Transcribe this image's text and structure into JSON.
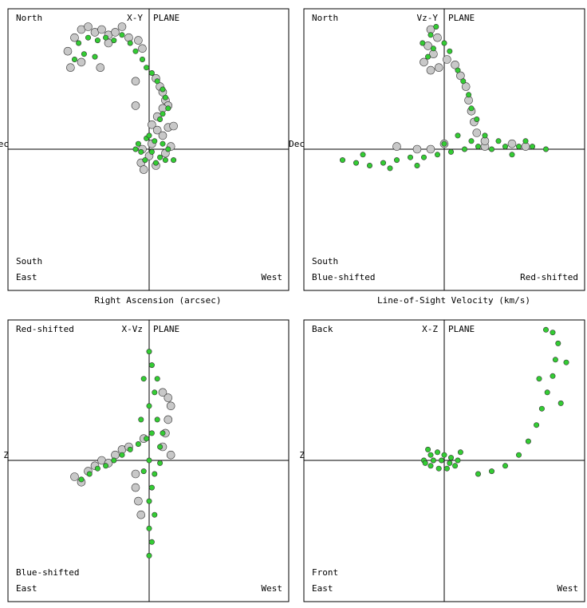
{
  "chart_data": [
    {
      "type": "scatter",
      "plane": "X-Y",
      "plane_label": "PLANE",
      "corners": {
        "top_left": "North",
        "bottom_left_upper": "South",
        "bottom_left": "East",
        "bottom_right": "West"
      },
      "xlabel": "Right Ascension (arcsec)",
      "ylabel": "Dec",
      "xlim": [
        -1,
        1
      ],
      "ylim": [
        -1,
        1
      ],
      "grid": false,
      "series": [
        {
          "color": "#c8c8c8",
          "values": [
            [
              -0.55,
              0.82
            ],
            [
              -0.5,
              0.88
            ],
            [
              -0.45,
              0.9
            ],
            [
              -0.4,
              0.86
            ],
            [
              -0.35,
              0.88
            ],
            [
              -0.3,
              0.84
            ],
            [
              -0.25,
              0.86
            ],
            [
              -0.2,
              0.9
            ],
            [
              -0.15,
              0.82
            ],
            [
              -0.08,
              0.8
            ],
            [
              -0.05,
              0.74
            ],
            [
              -0.6,
              0.72
            ],
            [
              -0.58,
              0.6
            ],
            [
              -0.5,
              0.64
            ],
            [
              -0.36,
              0.6
            ],
            [
              -0.3,
              0.78
            ],
            [
              -0.1,
              0.5
            ],
            [
              0.05,
              0.52
            ],
            [
              0.08,
              0.46
            ],
            [
              0.1,
              0.42
            ],
            [
              0.12,
              0.36
            ],
            [
              0.14,
              0.32
            ],
            [
              0.1,
              0.3
            ],
            [
              0.06,
              0.24
            ],
            [
              0.02,
              0.18
            ],
            [
              0.06,
              0.14
            ],
            [
              0.1,
              0.1
            ],
            [
              0.02,
              0.04
            ],
            [
              -0.05,
              0.0
            ],
            [
              0.0,
              -0.05
            ],
            [
              -0.06,
              -0.1
            ],
            [
              -0.04,
              -0.15
            ],
            [
              0.05,
              -0.12
            ],
            [
              0.12,
              -0.03
            ],
            [
              0.16,
              0.02
            ],
            [
              0.14,
              0.16
            ],
            [
              0.18,
              0.17
            ],
            [
              -0.1,
              0.32
            ]
          ]
        },
        {
          "color": "#33cc33",
          "values": [
            [
              -0.52,
              0.78
            ],
            [
              -0.45,
              0.82
            ],
            [
              -0.38,
              0.8
            ],
            [
              -0.32,
              0.82
            ],
            [
              -0.26,
              0.8
            ],
            [
              -0.2,
              0.84
            ],
            [
              -0.14,
              0.78
            ],
            [
              -0.1,
              0.72
            ],
            [
              -0.05,
              0.66
            ],
            [
              -0.02,
              0.6
            ],
            [
              0.02,
              0.56
            ],
            [
              0.06,
              0.5
            ],
            [
              0.1,
              0.44
            ],
            [
              0.12,
              0.38
            ],
            [
              0.14,
              0.3
            ],
            [
              0.1,
              0.26
            ],
            [
              0.08,
              0.22
            ],
            [
              -0.55,
              0.66
            ],
            [
              -0.48,
              0.7
            ],
            [
              -0.4,
              0.68
            ],
            [
              -0.02,
              0.08
            ],
            [
              0.04,
              0.06
            ],
            [
              0.1,
              0.04
            ],
            [
              -0.08,
              0.04
            ],
            [
              -0.06,
              -0.02
            ],
            [
              0.02,
              -0.02
            ],
            [
              0.08,
              -0.06
            ],
            [
              0.14,
              0.0
            ],
            [
              -0.03,
              -0.08
            ],
            [
              0.05,
              -0.1
            ],
            [
              -0.1,
              0.0
            ],
            [
              0.12,
              -0.08
            ],
            [
              0.18,
              -0.08
            ],
            [
              0.0,
              0.1
            ]
          ]
        }
      ]
    },
    {
      "type": "scatter",
      "plane": "Vz-Y",
      "plane_label": "PLANE",
      "corners": {
        "top_left": "North",
        "bottom_left_upper": "South",
        "bottom_left": "Blue-shifted",
        "bottom_right": "Red-shifted"
      },
      "xlabel": "Line-of-Sight Velocity (km/s)",
      "ylabel": "Dec",
      "xlim": [
        -1,
        1
      ],
      "ylim": [
        -1,
        1
      ],
      "grid": false,
      "series": [
        {
          "color": "#c8c8c8",
          "values": [
            [
              -0.1,
              0.88
            ],
            [
              -0.05,
              0.82
            ],
            [
              -0.12,
              0.76
            ],
            [
              -0.08,
              0.7
            ],
            [
              -0.15,
              0.64
            ],
            [
              -0.1,
              0.58
            ],
            [
              -0.04,
              0.6
            ],
            [
              0.02,
              0.66
            ],
            [
              0.08,
              0.62
            ],
            [
              0.12,
              0.54
            ],
            [
              0.16,
              0.46
            ],
            [
              0.18,
              0.36
            ],
            [
              0.2,
              0.28
            ],
            [
              0.22,
              0.2
            ],
            [
              0.24,
              0.12
            ],
            [
              -0.35,
              0.02
            ],
            [
              -0.2,
              0.0
            ],
            [
              0.0,
              0.04
            ],
            [
              0.3,
              0.02
            ],
            [
              0.5,
              0.04
            ],
            [
              0.6,
              0.02
            ],
            [
              0.3,
              0.06
            ],
            [
              -0.1,
              0.0
            ]
          ]
        },
        {
          "color": "#33cc33",
          "values": [
            [
              -0.06,
              0.9
            ],
            [
              -0.1,
              0.84
            ],
            [
              -0.16,
              0.78
            ],
            [
              -0.08,
              0.74
            ],
            [
              0.0,
              0.78
            ],
            [
              0.04,
              0.72
            ],
            [
              -0.12,
              0.68
            ],
            [
              0.1,
              0.58
            ],
            [
              0.14,
              0.5
            ],
            [
              0.18,
              0.4
            ],
            [
              0.2,
              0.3
            ],
            [
              0.24,
              0.22
            ],
            [
              -0.75,
              -0.08
            ],
            [
              -0.65,
              -0.1
            ],
            [
              -0.55,
              -0.12
            ],
            [
              -0.45,
              -0.1
            ],
            [
              -0.35,
              -0.08
            ],
            [
              -0.25,
              -0.06
            ],
            [
              -0.15,
              -0.06
            ],
            [
              -0.05,
              -0.04
            ],
            [
              0.05,
              -0.02
            ],
            [
              0.15,
              0.0
            ],
            [
              0.25,
              0.02
            ],
            [
              0.35,
              0.0
            ],
            [
              0.45,
              0.02
            ],
            [
              0.55,
              0.02
            ],
            [
              0.65,
              0.02
            ],
            [
              0.75,
              0.0
            ],
            [
              -0.6,
              -0.04
            ],
            [
              -0.4,
              -0.14
            ],
            [
              -0.2,
              -0.12
            ],
            [
              0.0,
              0.04
            ],
            [
              0.2,
              0.06
            ],
            [
              0.4,
              0.06
            ],
            [
              0.6,
              0.06
            ],
            [
              0.3,
              0.1
            ],
            [
              0.1,
              0.1
            ],
            [
              0.5,
              -0.04
            ]
          ]
        }
      ]
    },
    {
      "type": "scatter",
      "plane": "X-Vz",
      "plane_label": "PLANE",
      "corners": {
        "top_left": "Red-shifted",
        "bottom_left_upper": "Blue-shifted",
        "bottom_left": "East",
        "bottom_right": "West"
      },
      "xlabel": "Right Ascension (arcsec)",
      "ylabel": "Z",
      "xlim": [
        -1,
        1
      ],
      "ylim": [
        -1,
        1
      ],
      "grid": false,
      "series": [
        {
          "color": "#c8c8c8",
          "values": [
            [
              -0.55,
              -0.12
            ],
            [
              -0.5,
              -0.16
            ],
            [
              -0.45,
              -0.08
            ],
            [
              -0.4,
              -0.04
            ],
            [
              -0.35,
              0.0
            ],
            [
              -0.3,
              -0.02
            ],
            [
              -0.25,
              0.04
            ],
            [
              -0.2,
              0.08
            ],
            [
              -0.15,
              0.1
            ],
            [
              -0.1,
              -0.2
            ],
            [
              -0.08,
              -0.3
            ],
            [
              -0.06,
              -0.4
            ],
            [
              0.1,
              0.5
            ],
            [
              0.14,
              0.46
            ],
            [
              0.16,
              0.4
            ],
            [
              0.14,
              0.3
            ],
            [
              0.12,
              0.2
            ],
            [
              0.1,
              0.1
            ],
            [
              0.16,
              0.04
            ],
            [
              -0.04,
              0.16
            ],
            [
              -0.1,
              -0.1
            ]
          ]
        },
        {
          "color": "#33cc33",
          "values": [
            [
              -0.5,
              -0.14
            ],
            [
              -0.44,
              -0.1
            ],
            [
              -0.38,
              -0.06
            ],
            [
              -0.32,
              -0.04
            ],
            [
              -0.26,
              0.0
            ],
            [
              -0.2,
              0.04
            ],
            [
              -0.14,
              0.08
            ],
            [
              -0.08,
              0.12
            ],
            [
              -0.02,
              0.16
            ],
            [
              0.0,
              0.8
            ],
            [
              0.02,
              0.7
            ],
            [
              -0.04,
              0.6
            ],
            [
              0.04,
              0.5
            ],
            [
              0.0,
              0.4
            ],
            [
              0.06,
              0.3
            ],
            [
              0.02,
              0.2
            ],
            [
              0.08,
              0.1
            ],
            [
              0.0,
              0.0
            ],
            [
              0.04,
              -0.1
            ],
            [
              0.02,
              -0.2
            ],
            [
              0.0,
              -0.3
            ],
            [
              0.04,
              -0.4
            ],
            [
              0.0,
              -0.5
            ],
            [
              0.02,
              -0.6
            ],
            [
              0.0,
              -0.7
            ],
            [
              -0.04,
              -0.08
            ],
            [
              0.08,
              -0.02
            ],
            [
              0.1,
              0.2
            ],
            [
              -0.06,
              0.3
            ],
            [
              0.06,
              0.6
            ]
          ]
        }
      ]
    },
    {
      "type": "scatter",
      "plane": "X-Z",
      "plane_label": "PLANE",
      "corners": {
        "top_left": "Back",
        "bottom_left_upper": "Front",
        "bottom_left": "East",
        "bottom_right": "West"
      },
      "xlabel": "Right Ascension (arcsec)",
      "ylabel": "Z",
      "xlim": [
        -1,
        1
      ],
      "ylim": [
        -1,
        1
      ],
      "grid": false,
      "series": [
        {
          "color": "#33cc33",
          "values": [
            [
              -0.15,
              0.0
            ],
            [
              -0.1,
              0.04
            ],
            [
              -0.05,
              0.06
            ],
            [
              0.0,
              0.04
            ],
            [
              0.05,
              0.02
            ],
            [
              0.1,
              0.0
            ],
            [
              0.08,
              -0.04
            ],
            [
              0.02,
              -0.06
            ],
            [
              -0.04,
              -0.06
            ],
            [
              -0.1,
              -0.04
            ],
            [
              -0.14,
              -0.02
            ],
            [
              -0.02,
              0.0
            ],
            [
              0.04,
              -0.02
            ],
            [
              -0.08,
              0.0
            ],
            [
              0.12,
              0.06
            ],
            [
              -0.12,
              0.08
            ],
            [
              0.25,
              -0.1
            ],
            [
              0.35,
              -0.08
            ],
            [
              0.45,
              -0.04
            ],
            [
              0.55,
              0.04
            ],
            [
              0.62,
              0.14
            ],
            [
              0.68,
              0.26
            ],
            [
              0.72,
              0.38
            ],
            [
              0.76,
              0.5
            ],
            [
              0.8,
              0.62
            ],
            [
              0.82,
              0.74
            ],
            [
              0.84,
              0.86
            ],
            [
              0.8,
              0.94
            ],
            [
              0.75,
              0.96
            ],
            [
              0.86,
              0.42
            ],
            [
              0.7,
              0.6
            ],
            [
              0.9,
              0.72
            ]
          ]
        }
      ]
    }
  ],
  "axis_title_top_left": "Right Ascension (arcsec)",
  "axis_title_top_right": "Line-of-Sight Velocity (km/s)"
}
